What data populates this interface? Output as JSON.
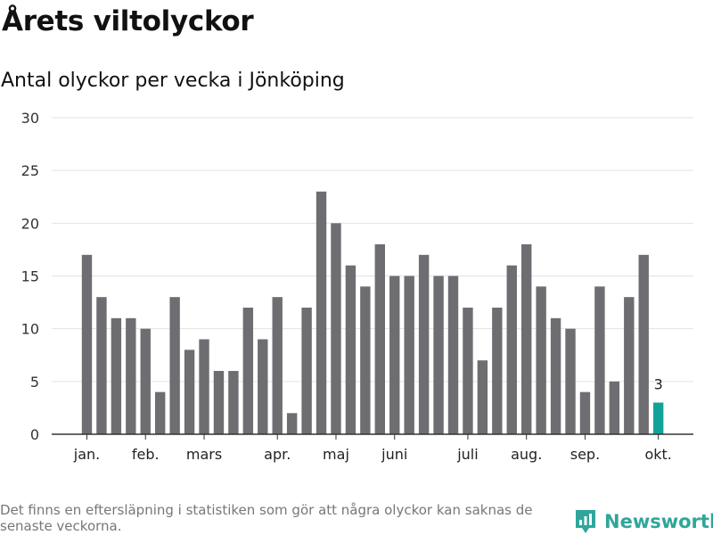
{
  "header": {
    "title": "Årets viltolyckor",
    "subtitle": "Antal olyckor per vecka i Jönköping"
  },
  "footer": {
    "note": "Det finns en eftersläpning i statistiken som gör att några olyckor kan saknas de senaste veckorna.",
    "brand": "Newsworthy"
  },
  "colors": {
    "bar": "#6e6d72",
    "highlight": "#11a39a",
    "grid": "#e2e2e2",
    "axis": "#333333",
    "brand": "#2fa69a",
    "brand_icon": "brand-chart-badge-icon"
  },
  "chart_data": {
    "type": "bar",
    "title": "Antal olyckor per vecka i Jönköping",
    "xlabel": "",
    "ylabel": "",
    "ylim": [
      0,
      30
    ],
    "yticks": [
      0,
      5,
      10,
      15,
      20,
      25,
      30
    ],
    "grid": true,
    "unit": "vecka",
    "values": [
      17,
      13,
      11,
      11,
      10,
      4,
      13,
      8,
      9,
      6,
      6,
      12,
      9,
      13,
      2,
      12,
      23,
      20,
      16,
      14,
      18,
      15,
      15,
      17,
      15,
      15,
      12,
      7,
      12,
      16,
      18,
      14,
      11,
      10,
      4,
      14,
      5,
      13,
      17,
      3
    ],
    "highlight_index": 39,
    "highlight_label": "3",
    "month_ticks": [
      {
        "label": "jan.",
        "position": 0
      },
      {
        "label": "feb.",
        "position": 4
      },
      {
        "label": "mars",
        "position": 8
      },
      {
        "label": "apr.",
        "position": 13
      },
      {
        "label": "maj",
        "position": 17
      },
      {
        "label": "juni",
        "position": 21
      },
      {
        "label": "juli",
        "position": 26
      },
      {
        "label": "aug.",
        "position": 30
      },
      {
        "label": "sep.",
        "position": 34
      },
      {
        "label": "okt.",
        "position": 39
      }
    ]
  }
}
